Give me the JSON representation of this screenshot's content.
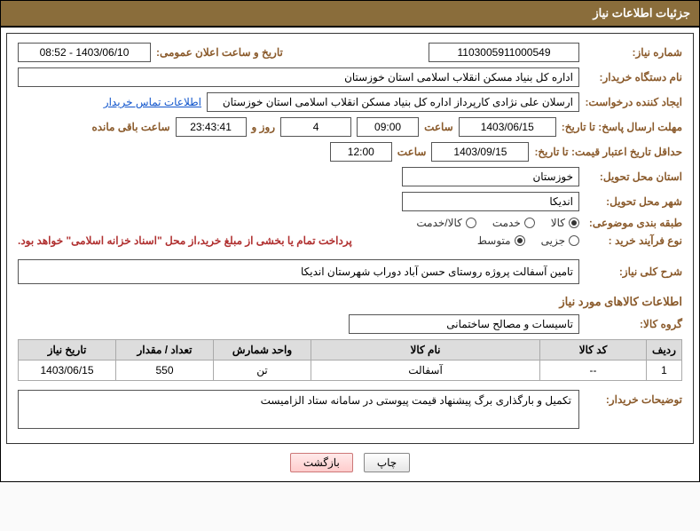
{
  "header": {
    "title": "جزئیات اطلاعات نیاز"
  },
  "fields": {
    "need_number_label": "شماره نیاز:",
    "need_number": "1103005911000549",
    "announce_date_label": "تاریخ و ساعت اعلان عمومی:",
    "announce_date": "1403/06/10 - 08:52",
    "buyer_org_label": "نام دستگاه خریدار:",
    "buyer_org": "اداره کل بنیاد مسکن انقلاب اسلامی استان خوزستان",
    "requester_label": "ایجاد کننده درخواست:",
    "requester": "ارسلان علی نژادی کارپرداز اداره کل بنیاد مسکن انقلاب اسلامی استان خوزستان",
    "contact_link": "اطلاعات تماس خریدار",
    "resp_deadline_label": "مهلت ارسال پاسخ: تا تاریخ:",
    "resp_date": "1403/06/15",
    "time_label": "ساعت",
    "resp_time": "09:00",
    "days_count": "4",
    "days_word": "روز و",
    "countdown": "23:43:41",
    "remaining_label": "ساعت باقی مانده",
    "price_validity_label": "حداقل تاریخ اعتبار قیمت: تا تاریخ:",
    "price_date": "1403/09/15",
    "price_time": "12:00",
    "delivery_province_label": "استان محل تحویل:",
    "delivery_province": "خوزستان",
    "delivery_city_label": "شهر محل تحویل:",
    "delivery_city": "اندیکا",
    "category_label": "طبقه بندی موضوعی:",
    "process_type_label": "نوع فرآیند خرید :",
    "payment_note": "پرداخت تمام یا بخشی از مبلغ خرید،از محل \"اسناد خزانه اسلامی\" خواهد بود."
  },
  "category_options": [
    {
      "label": "کالا",
      "checked": true
    },
    {
      "label": "خدمت",
      "checked": false
    },
    {
      "label": "کالا/خدمت",
      "checked": false
    }
  ],
  "process_options": [
    {
      "label": "جزیی",
      "checked": false
    },
    {
      "label": "متوسط",
      "checked": true
    }
  ],
  "overall_desc": {
    "label": "شرح کلی نیاز:",
    "value": "تامین آسفالت پروژه روستای حسن آباد دوراب  شهرستان اندیکا"
  },
  "items_section_title": "اطلاعات کالاهای مورد نیاز",
  "group_label": "گروه کالا:",
  "group_value": "تاسیسات و مصالح ساختمانی",
  "table": {
    "columns": [
      "ردیف",
      "کد کالا",
      "نام کالا",
      "واحد شمارش",
      "تعداد / مقدار",
      "تاریخ نیاز"
    ],
    "rows": [
      [
        "1",
        "--",
        "آسفالت",
        "تن",
        "550",
        "1403/06/15"
      ]
    ],
    "col_widths": [
      "40px",
      "120px",
      "auto",
      "110px",
      "110px",
      "110px"
    ]
  },
  "buyer_notes": {
    "label": "توضیحات خریدار:",
    "value": "تکمیل و بارگذاری برگ پیشنهاد قیمت پیوستی در سامانه ستاد الزامیست"
  },
  "buttons": {
    "print": "چاپ",
    "back": "بازگشت"
  },
  "colors": {
    "header_bg": "#8a6d3b",
    "label_color": "#8a5a2b",
    "link_color": "#1155cc",
    "note_color": "#b03030"
  }
}
